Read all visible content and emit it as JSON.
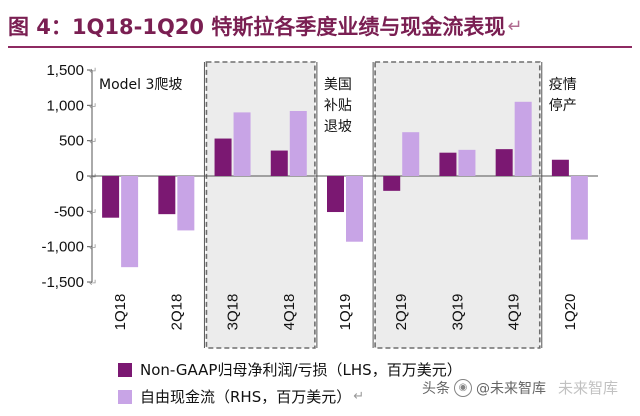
{
  "header": {
    "figure_label": "图 4：",
    "title": "1Q18-1Q20 特斯拉各季度业绩与现金流表现",
    "return_mark": "↵"
  },
  "chart_data": {
    "type": "bar",
    "title": "1Q18-1Q20 特斯拉各季度业绩与现金流表现",
    "categories": [
      "1Q18",
      "2Q18",
      "3Q18",
      "4Q18",
      "1Q19",
      "2Q19",
      "3Q19",
      "4Q19",
      "1Q20"
    ],
    "series": [
      {
        "name": "Non-GAAP归母净利润/亏损（LHS，百万美元）",
        "color": "#7b1872",
        "values": [
          -590,
          -540,
          530,
          360,
          -510,
          -210,
          330,
          380,
          230
        ]
      },
      {
        "name": "自由现金流（RHS，百万美元）",
        "color": "#c8a4e6",
        "values": [
          -1290,
          -770,
          900,
          920,
          -930,
          620,
          370,
          1050,
          -900
        ]
      }
    ],
    "ylim": [
      -1500,
      1500
    ],
    "yticks": [
      -1500,
      -1000,
      -500,
      0,
      500,
      1000,
      1500
    ],
    "ytick_labels": [
      "-1,500",
      "-1,000",
      "-500",
      "0",
      "500",
      "1,000",
      "1,500"
    ],
    "dividers_after_category": [
      1,
      3,
      4,
      7
    ],
    "highlight_groups": [
      [
        2,
        3
      ],
      [
        5,
        6,
        7
      ]
    ],
    "annotations": [
      {
        "category_index": 0,
        "lines": [
          "Model 3爬坡"
        ]
      },
      {
        "category_index": 4,
        "lines": [
          "美国",
          "补贴",
          "退坡"
        ]
      },
      {
        "category_index": 8,
        "lines": [
          "疫情",
          "停产"
        ]
      }
    ],
    "tick_suffix": "↵"
  },
  "legend": {
    "items": [
      {
        "label": "Non-GAAP归母净利润/亏损（LHS，百万美元）",
        "color": "#7b1872"
      },
      {
        "label": "自由现金流（RHS，百万美元）",
        "color": "#c8a4e6"
      }
    ],
    "return_mark": "↵"
  },
  "watermark": {
    "prefix": "头条",
    "handle": "@未来智库",
    "brand": "未来智库"
  }
}
